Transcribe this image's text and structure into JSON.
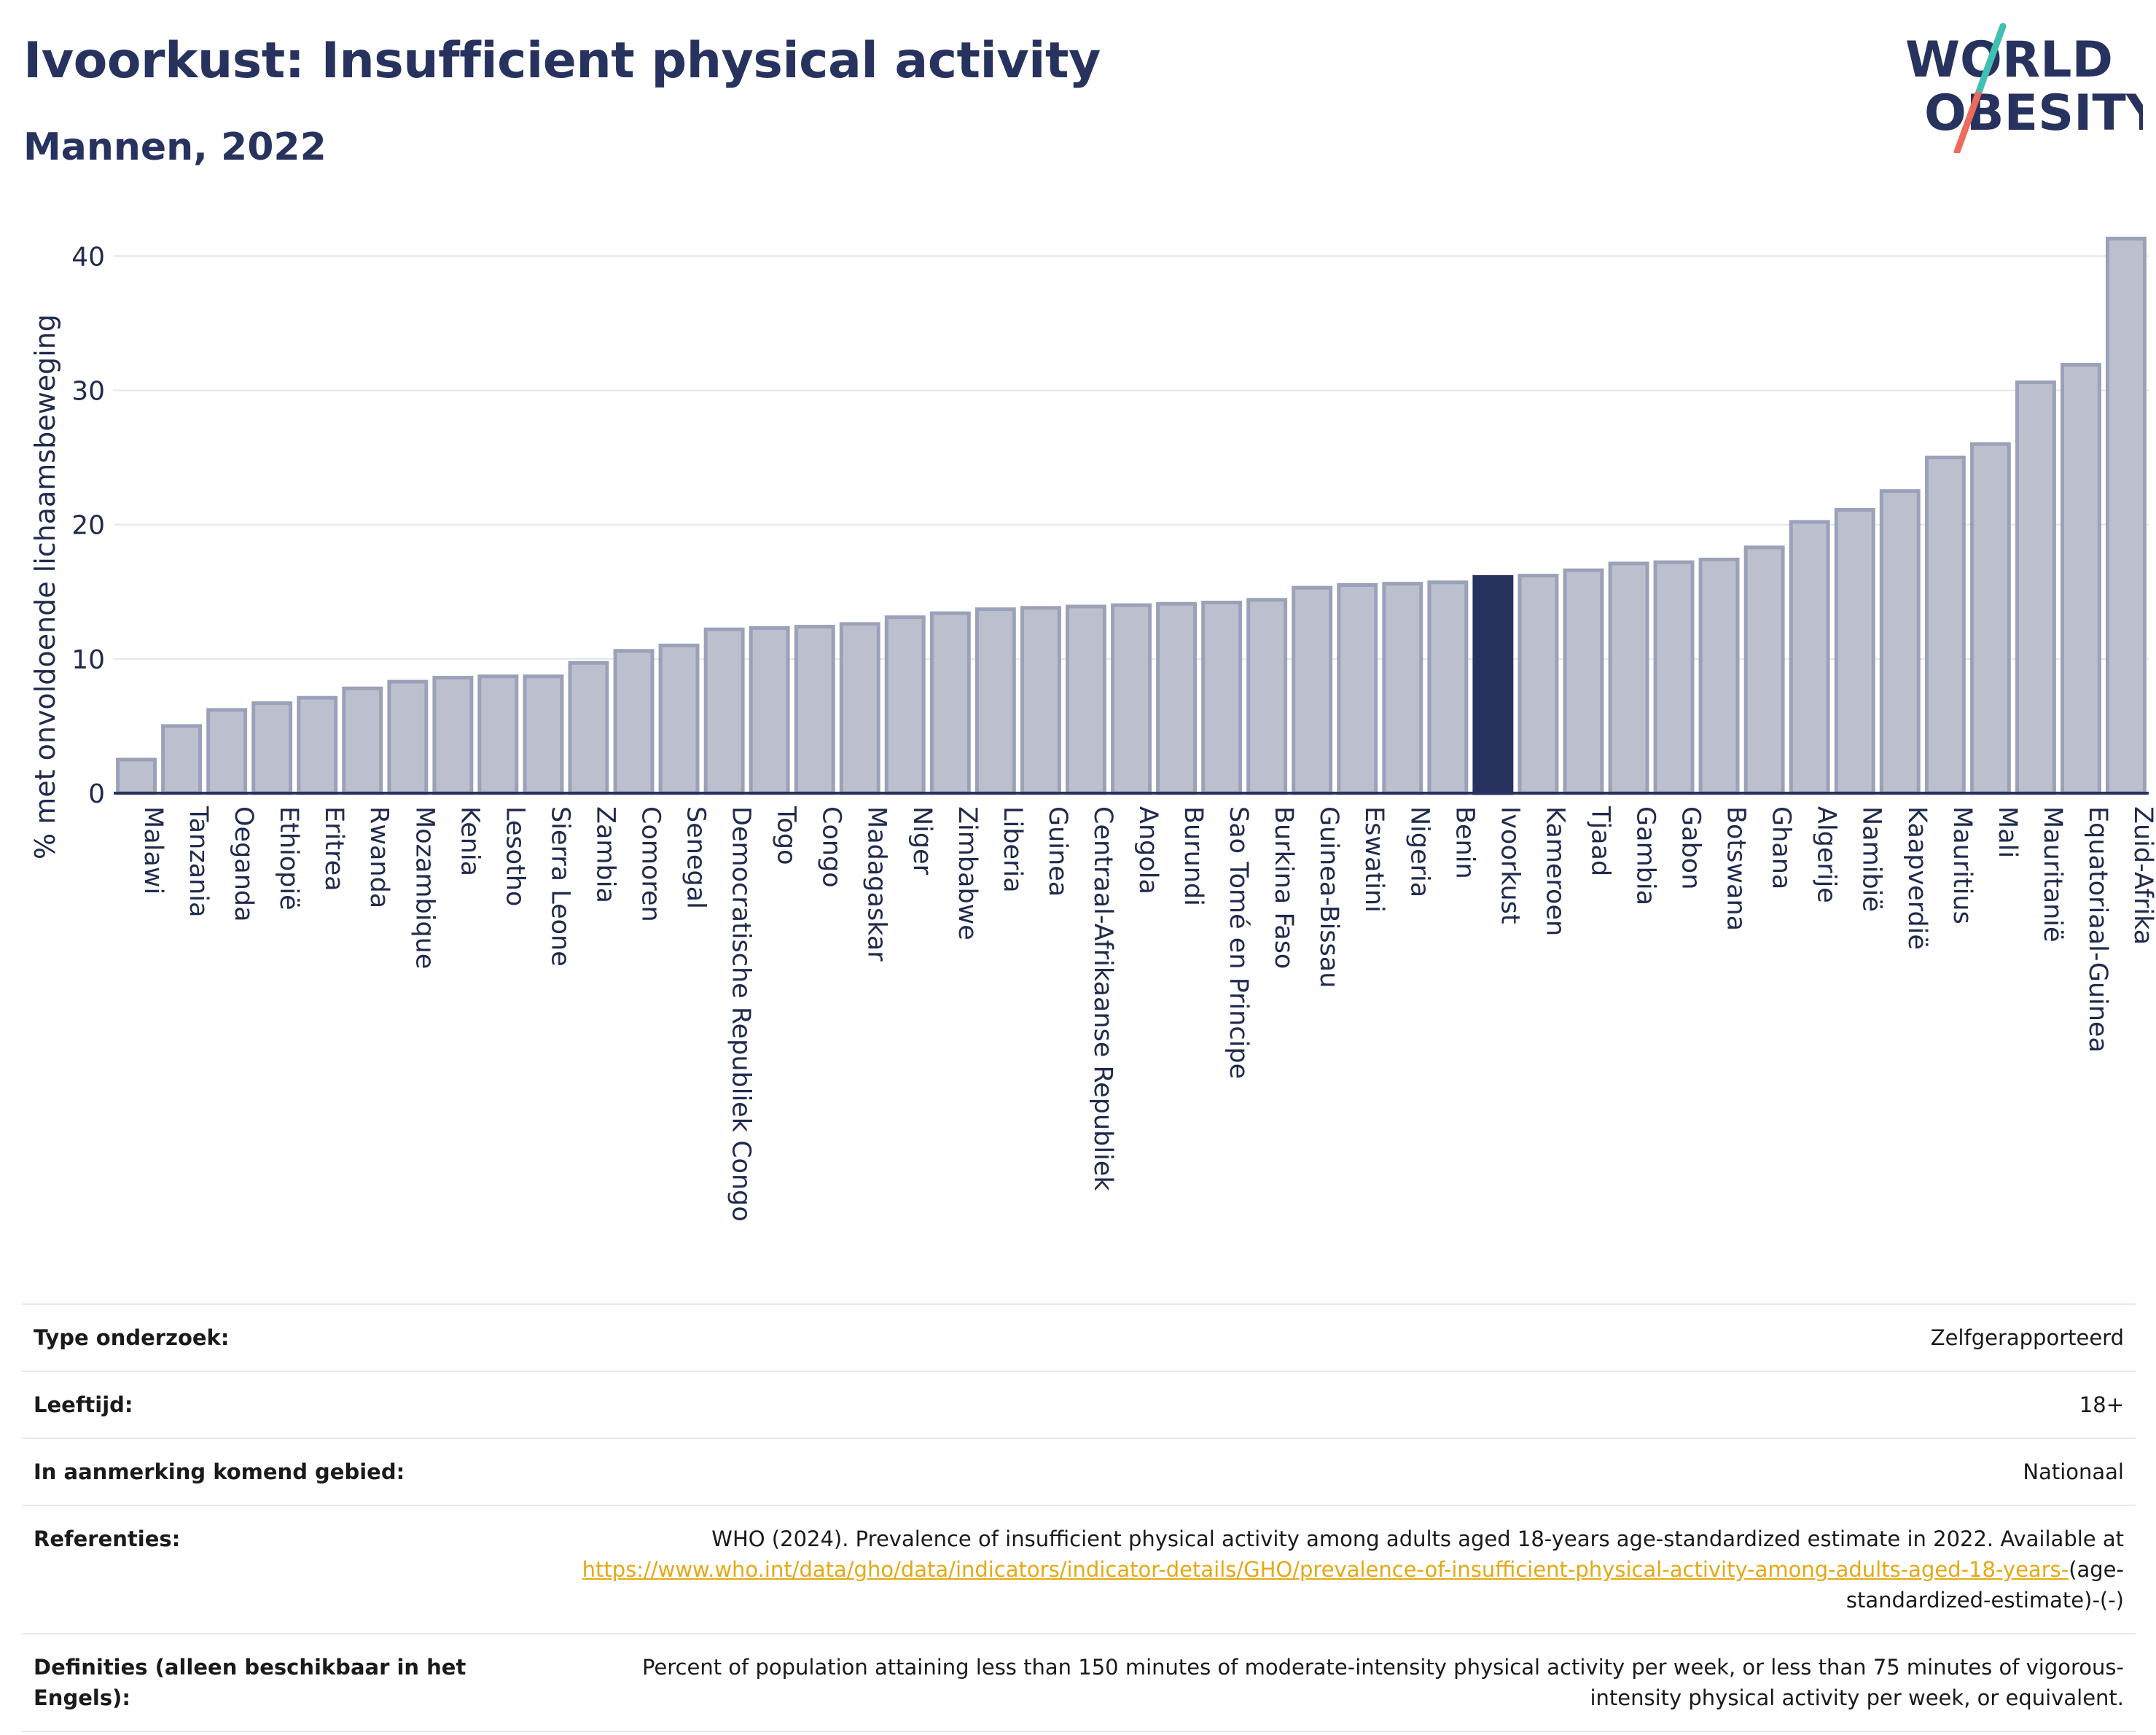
{
  "header": {
    "title": "Ivoorkust: Insufficient physical activity",
    "subtitle": "Mannen, 2022",
    "logo_line1": "WORLD",
    "logo_line2": "OBESITY"
  },
  "colors": {
    "bar_default": "#bcc0ce",
    "bar_default_stroke": "#9aa1b8",
    "bar_highlight": "#27325e",
    "axis": "#27325e",
    "grid": "#e4e6ec",
    "logo_teal": "#3fc0b4",
    "logo_coral": "#ee6b5c"
  },
  "chart_data": {
    "type": "bar",
    "ylabel": "% met onvoldoende lichaamsbeweging",
    "xlabel": "",
    "ylim": [
      0,
      43
    ],
    "yticks": [
      0,
      10,
      20,
      30,
      40
    ],
    "grid": true,
    "highlight": "Ivoorkust",
    "categories": [
      "Malawi",
      "Tanzania",
      "Oeganda",
      "Ethiopië",
      "Eritrea",
      "Rwanda",
      "Mozambique",
      "Kenia",
      "Lesotho",
      "Sierra Leone",
      "Zambia",
      "Comoren",
      "Senegal",
      "Democratische Republiek Congo",
      "Togo",
      "Congo",
      "Madagaskar",
      "Niger",
      "Zimbabwe",
      "Liberia",
      "Guinea",
      "Centraal-Afrikaanse Republiek",
      "Angola",
      "Burundi",
      "Sao Tomé en Principe",
      "Burkina Faso",
      "Guinea-Bissau",
      "Eswatini",
      "Nigeria",
      "Benin",
      "Ivoorkust",
      "Kameroen",
      "Tjaad",
      "Gambia",
      "Gabon",
      "Botswana",
      "Ghana",
      "Algerije",
      "Namibië",
      "Kaapverdië",
      "Mauritius",
      "Mali",
      "Mauritanië",
      "Equatoriaal-Guinea",
      "Zuid-Afrika"
    ],
    "values": [
      2.5,
      5.0,
      6.2,
      6.7,
      7.1,
      7.8,
      8.3,
      8.6,
      8.7,
      8.7,
      9.7,
      10.6,
      11.0,
      12.2,
      12.3,
      12.4,
      12.6,
      13.1,
      13.4,
      13.7,
      13.8,
      13.9,
      14.0,
      14.1,
      14.2,
      14.4,
      15.3,
      15.5,
      15.6,
      15.7,
      16.1,
      16.2,
      16.6,
      17.1,
      17.2,
      17.4,
      18.3,
      20.2,
      21.1,
      22.5,
      25.0,
      26.0,
      30.6,
      31.9,
      41.3
    ]
  },
  "info": {
    "survey_type_label": "Type onderzoek:",
    "survey_type_value": "Zelfgerapporteerd",
    "age_label": "Leeftijd:",
    "age_value": "18+",
    "area_label": "In aanmerking komend gebied:",
    "area_value": "Nationaal",
    "references_label": "Referenties:",
    "references_text": "WHO (2024). Prevalence of insufficient physical activity among adults aged 18-years age-standardized estimate in 2022. Available at",
    "references_link": "https://www.who.int/data/gho/data/indicators/indicator-details/GHO/prevalence-of-insufficient-physical-activity-among-adults-aged-18-years-",
    "references_suffix": "(age-standardized-estimate)-(-)",
    "definitions_label": "Definities (alleen beschikbaar in het Engels):",
    "definitions_text": "Percent of population attaining less than 150 minutes of moderate-intensity physical activity per week, or less than 75 minutes of vigorous-intensity physical activity per week, or equivalent."
  }
}
